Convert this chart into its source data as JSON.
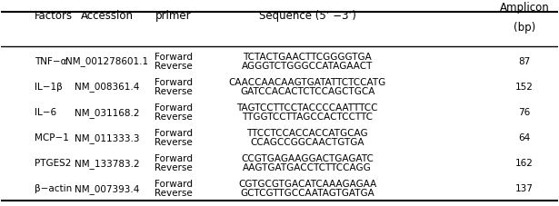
{
  "headers": [
    "Factors",
    "Accession",
    "primer",
    "Sequence (5’ −3’)",
    "Amplicon\n(bp)"
  ],
  "rows": [
    {
      "factor": "TNF−α",
      "accession": "NM_001278601.1",
      "forward_seq": "TCTACTGAACTTCGGGGTGA",
      "reverse_seq": "AGGGTCTGGGCCATAGAACT",
      "amplicon": "87"
    },
    {
      "factor": "IL−1β",
      "accession": "NM_008361.4",
      "forward_seq": "CAACCAACAAGTGATATTCTCCATG",
      "reverse_seq": "GATCCACACTCTCCAGCTGCA",
      "amplicon": "152"
    },
    {
      "factor": "IL−6",
      "accession": "NM_031168.2",
      "forward_seq": "TAGTCCTTCCTACCCCAATTTCC",
      "reverse_seq": "TTGGTCCTTAGCCACTCCTTC",
      "amplicon": "76"
    },
    {
      "factor": "MCP−1",
      "accession": "NM_011333.3",
      "forward_seq": "TTCCTCCACCACCATGCAG",
      "reverse_seq": "CCAGCCGGCAACTGTGA",
      "amplicon": "64"
    },
    {
      "factor": "PTGES2",
      "accession": "NM_133783.2",
      "forward_seq": "CCGTGAGAAGGACTGAGATC",
      "reverse_seq": "AAGTGATGACCTCTTCCAGG",
      "amplicon": "162"
    },
    {
      "factor": "β−actin",
      "accession": "NM_007393.4",
      "forward_seq": "CGTGCGTGACATCAAAGAGAA",
      "reverse_seq": "GCTCGTTGCCAATAGTGATGA",
      "amplicon": "137"
    }
  ],
  "bg_color": "#ffffff",
  "text_color": "#000000",
  "header_line_color": "#000000",
  "font_size": 7.5,
  "header_font_size": 8.5
}
